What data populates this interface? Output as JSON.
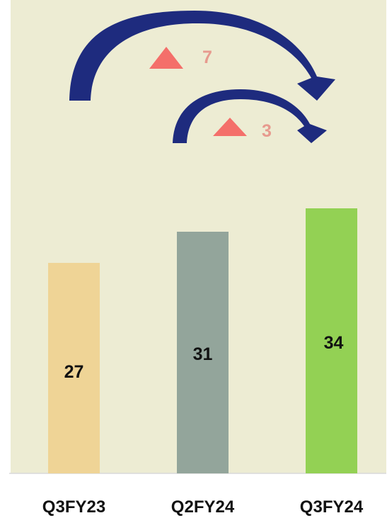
{
  "chart_data": {
    "type": "bar",
    "categories": [
      "Q3FY23",
      "Q2FY24",
      "Q3FY24"
    ],
    "values": [
      27,
      31,
      34
    ],
    "bar_colors": [
      "#efd496",
      "#93a59b",
      "#93d154"
    ],
    "ylim": [
      0,
      40
    ],
    "background_color": "#edecd3",
    "arrow_color": "#1e2b7e",
    "delta_color": "#f46f6a",
    "delta_text_color": "#e79a8e",
    "annotations": [
      {
        "from": "Q3FY23",
        "to": "Q3FY24",
        "delta": "7",
        "direction": "up"
      },
      {
        "from": "Q2FY24",
        "to": "Q3FY24",
        "delta": "3",
        "direction": "up"
      }
    ],
    "grid": false,
    "legend": "none"
  }
}
